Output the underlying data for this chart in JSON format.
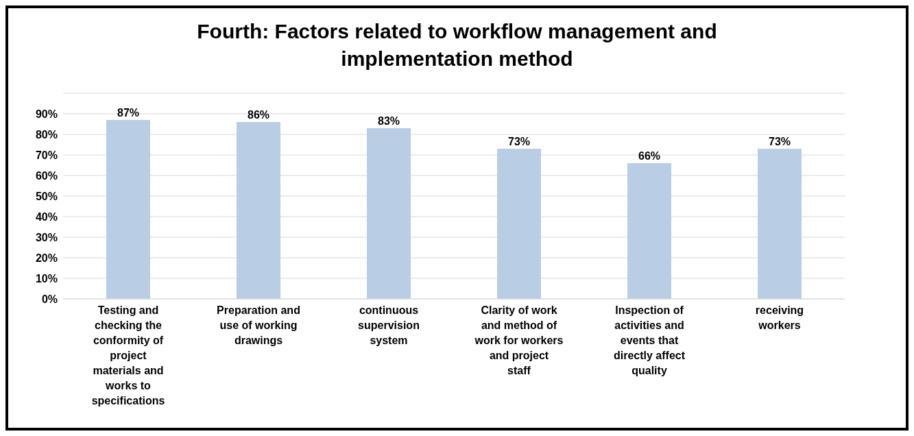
{
  "chart_data": {
    "type": "bar",
    "title": "Fourth: Factors related to workflow management and implementation method",
    "categories": [
      "Testing and checking the conformity of project materials and works to specifications",
      "Preparation and use of working drawings",
      "continuous supervision system",
      "Clarity of work and method of work for workers and project staff",
      "Inspection of activities and events that directly affect quality",
      "receiving workers"
    ],
    "values": [
      87,
      86,
      83,
      73,
      66,
      73
    ],
    "value_labels": [
      "87%",
      "86%",
      "83%",
      "73%",
      "66%",
      "73%"
    ],
    "color": "#b9cde5",
    "ylim": [
      0,
      100
    ],
    "yticks": [
      {
        "value": 0,
        "label": "0%"
      },
      {
        "value": 10,
        "label": "10%"
      },
      {
        "value": 20,
        "label": "20%"
      },
      {
        "value": 30,
        "label": "30%"
      },
      {
        "value": 40,
        "label": "40%"
      },
      {
        "value": 50,
        "label": "50%"
      },
      {
        "value": 60,
        "label": "60%"
      },
      {
        "value": 70,
        "label": "70%"
      },
      {
        "value": 80,
        "label": "80%"
      },
      {
        "value": 90,
        "label": "90%"
      },
      {
        "value": 100,
        "label": null
      }
    ],
    "grid": "y"
  }
}
